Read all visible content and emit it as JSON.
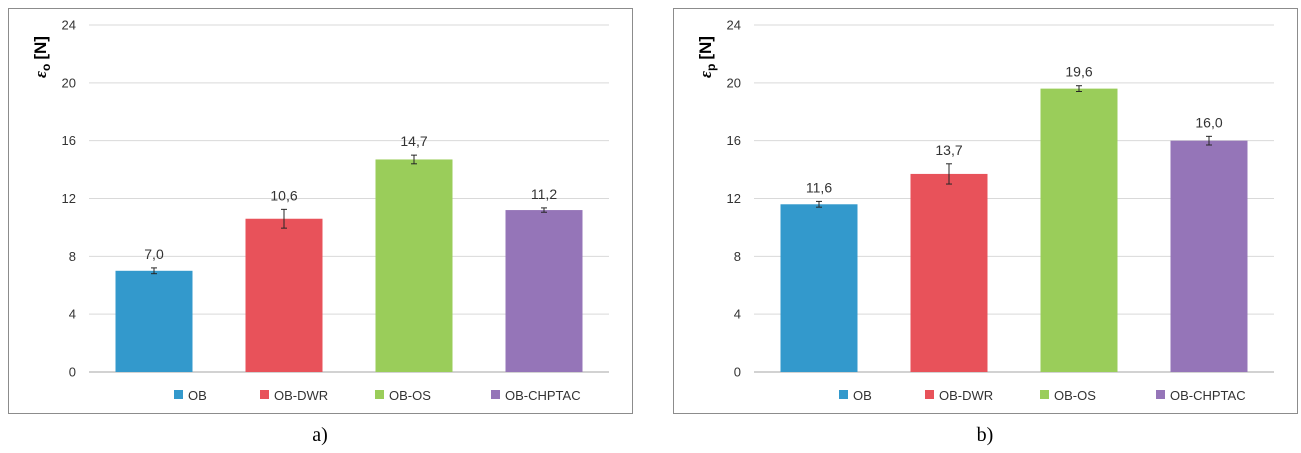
{
  "colors": {
    "OB": "#3399cc",
    "OB-DWR": "#e8525a",
    "OB-OS": "#9acd5a",
    "OB-CHPTAC": "#9575b8"
  },
  "chart_data": [
    {
      "type": "bar",
      "panel_caption": "a)",
      "ylabel_symbol": "ε",
      "ylabel_subscript": "o",
      "ylabel_unit": "[N]",
      "ylim": [
        0,
        24
      ],
      "yticks": [
        "0",
        "4",
        "8",
        "12",
        "16",
        "20",
        "24"
      ],
      "grid": true,
      "legend_position": "bottom",
      "categories": [
        "OB",
        "OB-DWR",
        "OB-OS",
        "OB-CHPTAC"
      ],
      "values": [
        7.0,
        10.6,
        14.7,
        11.2
      ],
      "errors": [
        0.2,
        0.65,
        0.3,
        0.15
      ],
      "value_labels": [
        "7,0",
        "10,6",
        "14,7",
        "11,2"
      ]
    },
    {
      "type": "bar",
      "panel_caption": "b)",
      "ylabel_symbol": "ε",
      "ylabel_subscript": "p",
      "ylabel_unit": "[N]",
      "ylim": [
        0,
        24
      ],
      "yticks": [
        "0",
        "4",
        "8",
        "12",
        "16",
        "20",
        "24"
      ],
      "grid": true,
      "legend_position": "bottom",
      "categories": [
        "OB",
        "OB-DWR",
        "OB-OS",
        "OB-CHPTAC"
      ],
      "values": [
        11.6,
        13.7,
        19.6,
        16.0
      ],
      "errors": [
        0.2,
        0.7,
        0.2,
        0.3
      ],
      "value_labels": [
        "11,6",
        "13,7",
        "19,6",
        "16,0"
      ]
    }
  ]
}
